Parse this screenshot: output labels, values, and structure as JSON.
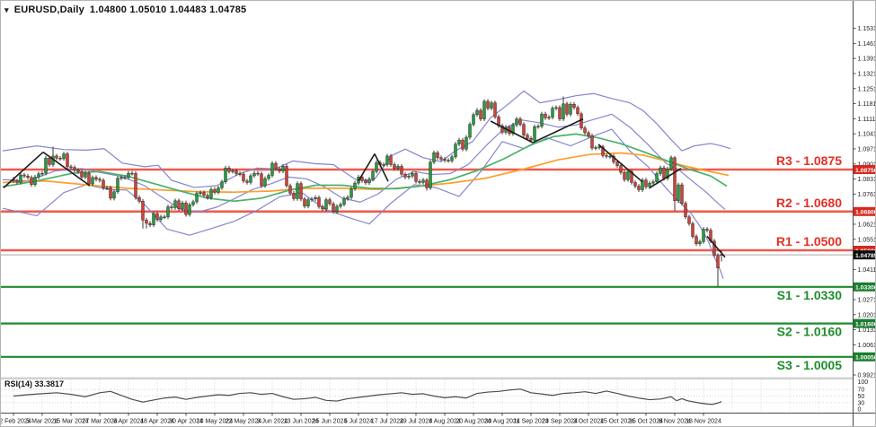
{
  "header": {
    "symbol_period": "EURUSD,Daily",
    "ohlc": "1.04800 1.05010 1.04483 1.04785"
  },
  "rsi": {
    "label": "RSI(14) 33.3817",
    "value": 33.3817,
    "scale_labels": [
      100,
      70,
      50,
      30,
      0
    ],
    "dotted_levels": [
      70,
      50,
      30
    ],
    "points": [
      [
        14,
        50
      ],
      [
        30,
        54
      ],
      [
        46,
        57
      ],
      [
        62,
        60
      ],
      [
        78,
        55
      ],
      [
        94,
        48
      ],
      [
        110,
        60
      ],
      [
        122,
        64
      ],
      [
        134,
        52
      ],
      [
        146,
        40
      ],
      [
        158,
        32
      ],
      [
        170,
        38
      ],
      [
        182,
        44
      ],
      [
        194,
        47
      ],
      [
        206,
        40
      ],
      [
        218,
        46
      ],
      [
        230,
        50
      ],
      [
        242,
        54
      ],
      [
        254,
        52
      ],
      [
        266,
        58
      ],
      [
        278,
        60
      ],
      [
        290,
        55
      ],
      [
        302,
        58
      ],
      [
        314,
        48
      ],
      [
        326,
        40
      ],
      [
        338,
        42
      ],
      [
        350,
        46
      ],
      [
        362,
        37
      ],
      [
        374,
        35
      ],
      [
        386,
        42
      ],
      [
        398,
        46
      ],
      [
        410,
        50
      ],
      [
        422,
        54
      ],
      [
        434,
        57
      ],
      [
        446,
        60
      ],
      [
        458,
        55
      ],
      [
        470,
        57
      ],
      [
        482,
        50
      ],
      [
        494,
        45
      ],
      [
        506,
        48
      ],
      [
        518,
        44
      ],
      [
        530,
        58
      ],
      [
        542,
        62
      ],
      [
        554,
        64
      ],
      [
        566,
        68
      ],
      [
        578,
        71
      ],
      [
        590,
        60
      ],
      [
        602,
        56
      ],
      [
        614,
        52
      ],
      [
        626,
        58
      ],
      [
        638,
        60
      ],
      [
        650,
        63
      ],
      [
        662,
        58
      ],
      [
        674,
        65
      ],
      [
        686,
        58
      ],
      [
        698,
        50
      ],
      [
        710,
        44
      ],
      [
        722,
        39
      ],
      [
        734,
        41
      ],
      [
        746,
        48
      ],
      [
        752,
        36
      ],
      [
        758,
        42
      ],
      [
        764,
        36
      ],
      [
        770,
        33
      ],
      [
        778,
        29
      ],
      [
        786,
        26
      ],
      [
        792,
        25
      ],
      [
        798,
        29
      ],
      [
        802,
        33.4
      ]
    ]
  },
  "chart_data": {
    "type": "candlestick",
    "symbol": "EURUSD",
    "timeframe": "Daily",
    "current_bar": {
      "open": 1.048,
      "high": 1.0501,
      "low": 1.04483,
      "close": 1.04785
    },
    "bid": {
      "price": 1.04785,
      "badge": "1.04785"
    },
    "levels": [
      {
        "name": "R3",
        "label": "R3 - 1.0875",
        "value": 1.0875,
        "badge": "1.08750",
        "type": "resistance"
      },
      {
        "name": "R2",
        "label": "R2 - 1.0680",
        "value": 1.068,
        "badge": "1.06800",
        "type": "resistance"
      },
      {
        "name": "R1",
        "label": "R1 - 1.0500",
        "value": 1.05,
        "badge": "1.05000",
        "type": "resistance"
      },
      {
        "name": "S1",
        "label": "S1 - 1.0330",
        "value": 1.033,
        "badge": "1.03300",
        "type": "support"
      },
      {
        "name": "S2",
        "label": "S2 - 1.0160",
        "value": 1.016,
        "badge": "1.01600",
        "type": "support"
      },
      {
        "name": "S3",
        "label": "S3 - 1.0005",
        "value": 1.0005,
        "badge": "1.00050",
        "type": "support"
      }
    ],
    "y_axis": {
      "ticks": [
        1.1531,
        1.1461,
        1.1391,
        1.1321,
        1.1251,
        1.1181,
        1.1111,
        1.1041,
        1.0971,
        1.0901,
        1.0831,
        1.0761,
        1.0621,
        1.0551,
        1.0411,
        1.0271,
        1.0201,
        1.0131,
        1.0061,
        0.9921
      ],
      "decimals": 5
    },
    "x_labels": [
      "22 Feb 2024",
      "5 Mar 2024",
      "15 Mar 2024",
      "27 Mar 2024",
      "8 Apr 2024",
      "18 Apr 2024",
      "30 Apr 2024",
      "10 May 2024",
      "22 May 2024",
      "3 Jun 2024",
      "13 Jun 2024",
      "25 Jun 2024",
      "5 Jul 2024",
      "17 Jul 2024",
      "29 Jul 2024",
      "8 Aug 2024",
      "20 Aug 2024",
      "30 Aug 2024",
      "11 Sep 2024",
      "23 Sep 2024",
      "3 Oct 2024",
      "15 Oct 2024",
      "25 Oct 2024",
      "6 Nov 2024",
      "18 Nov 2024"
    ],
    "open_first": 1.083,
    "closes": [
      1.0822,
      1.0815,
      1.085,
      1.0845,
      1.0838,
      1.0805,
      1.084,
      1.0855,
      1.0858,
      1.0928,
      1.0898,
      1.0938,
      1.0928,
      1.0925,
      1.0948,
      1.0888,
      1.0885,
      1.0872,
      1.0865,
      1.084,
      1.0858,
      1.0808,
      1.0838,
      1.083,
      1.0825,
      1.079,
      1.079,
      1.0742,
      1.0772,
      1.0835,
      1.0838,
      1.0838,
      1.0858,
      1.0857,
      1.0745,
      1.0728,
      1.064,
      1.0625,
      1.0618,
      1.067,
      1.0643,
      1.0655,
      1.0655,
      1.0702,
      1.0698,
      1.073,
      1.0693,
      1.072,
      1.0666,
      1.0712,
      1.0725,
      1.0764,
      1.0768,
      1.0755,
      1.0745,
      1.0783,
      1.077,
      1.079,
      1.0818,
      1.0882,
      1.0866,
      1.0869,
      1.0856,
      1.0854,
      1.0822,
      1.0815,
      1.0846,
      1.0858,
      1.0855,
      1.08,
      1.0833,
      1.0848,
      1.0904,
      1.0878,
      1.0868,
      1.089,
      1.08,
      1.0765,
      1.074,
      1.081,
      1.0738,
      1.0705,
      1.0735,
      1.0738,
      1.0745,
      1.0703,
      1.0692,
      1.0735,
      1.0716,
      1.068,
      1.0704,
      1.0713,
      1.074,
      1.0746,
      1.0786,
      1.0812,
      1.084,
      1.0824,
      1.0813,
      1.083,
      1.0866,
      1.0907,
      1.0897,
      1.0898,
      1.0938,
      1.0898,
      1.088,
      1.089,
      1.0853,
      1.084,
      1.0845,
      1.0857,
      1.082,
      1.0815,
      1.0826,
      1.079,
      1.091,
      1.0953,
      1.093,
      1.0923,
      1.0918,
      1.0916,
      1.0934,
      1.0993,
      1.1012,
      1.097,
      1.1025,
      1.1085,
      1.113,
      1.115,
      1.111,
      1.1192,
      1.116,
      1.1185,
      1.112,
      1.1078,
      1.1048,
      1.1072,
      1.1042,
      1.1082,
      1.111,
      1.1085,
      1.1035,
      1.102,
      1.1011,
      1.1074,
      1.1076,
      1.1133,
      1.1115,
      1.1118,
      1.116,
      1.1163,
      1.111,
      1.118,
      1.1132,
      1.1178,
      1.1163,
      1.1134,
      1.1068,
      1.1046,
      1.1032,
      1.0975,
      1.0977,
      1.098,
      1.094,
      1.0936,
      1.0937,
      1.091,
      1.0893,
      1.0862,
      1.0828,
      1.0866,
      1.0815,
      1.0798,
      1.0781,
      1.0826,
      1.0795,
      1.0812,
      1.0818,
      1.0856,
      1.0883,
      1.0834,
      1.0878,
      1.093,
      1.073,
      1.0804,
      1.0718,
      1.0655,
      1.0624,
      1.0564,
      1.053,
      1.054,
      1.0598,
      1.0593,
      1.0543,
      1.0476,
      1.0418,
      1.04785
    ],
    "wick_overrides": {
      "11": {
        "h": 1.0981
      },
      "36": {
        "l": 1.0601
      },
      "37": {
        "l": 1.0601
      },
      "115": {
        "l": 1.0777
      },
      "131": {
        "h": 1.1201
      },
      "153": {
        "h": 1.1214
      },
      "184": {
        "h": 1.0937,
        "l": 1.0683
      },
      "196": {
        "l": 1.0333
      },
      "197": {
        "o": 1.048,
        "h": 1.0501,
        "l": 1.0448,
        "c": 1.04785
      }
    },
    "bollinger": {
      "upper": [
        [
          2,
          1.0962
        ],
        [
          40,
          1.0985
        ],
        [
          70,
          1.0968
        ],
        [
          95,
          1.0965
        ],
        [
          115,
          1.0972
        ],
        [
          135,
          1.0905
        ],
        [
          160,
          1.0888
        ],
        [
          175,
          1.0895
        ],
        [
          190,
          1.0825
        ],
        [
          215,
          1.0792
        ],
        [
          240,
          1.08
        ],
        [
          265,
          1.0855
        ],
        [
          285,
          1.0882
        ],
        [
          305,
          1.0878
        ],
        [
          325,
          1.0915
        ],
        [
          350,
          1.0902
        ],
        [
          370,
          1.0898
        ],
        [
          395,
          1.0828
        ],
        [
          415,
          1.0825
        ],
        [
          435,
          1.094
        ],
        [
          450,
          1.097
        ],
        [
          470,
          1.093
        ],
        [
          490,
          1.0912
        ],
        [
          505,
          1.096
        ],
        [
          525,
          1.1005
        ],
        [
          545,
          1.1115
        ],
        [
          565,
          1.118
        ],
        [
          582,
          1.124
        ],
        [
          600,
          1.1185
        ],
        [
          620,
          1.12
        ],
        [
          640,
          1.1218
        ],
        [
          660,
          1.1228
        ],
        [
          680,
          1.1205
        ],
        [
          700,
          1.1185
        ],
        [
          715,
          1.1148
        ],
        [
          730,
          1.1088
        ],
        [
          745,
          1.1018
        ],
        [
          758,
          1.0962
        ],
        [
          772,
          1.0985
        ],
        [
          790,
          1.0996
        ],
        [
          802,
          1.0985
        ],
        [
          812,
          1.0972
        ]
      ],
      "middle": [
        [
          2,
          1.0828
        ],
        [
          30,
          1.0822
        ],
        [
          60,
          1.0868
        ],
        [
          90,
          1.088
        ],
        [
          110,
          1.0862
        ],
        [
          135,
          1.0842
        ],
        [
          160,
          1.08
        ],
        [
          180,
          1.0745
        ],
        [
          200,
          1.069
        ],
        [
          220,
          1.0678
        ],
        [
          240,
          1.07
        ],
        [
          260,
          1.074
        ],
        [
          280,
          1.0782
        ],
        [
          300,
          1.0808
        ],
        [
          320,
          1.084
        ],
        [
          340,
          1.0832
        ],
        [
          360,
          1.0795
        ],
        [
          380,
          1.0742
        ],
        [
          400,
          1.0724
        ],
        [
          420,
          1.0762
        ],
        [
          440,
          1.083
        ],
        [
          460,
          1.0866
        ],
        [
          480,
          1.0852
        ],
        [
          500,
          1.0856
        ],
        [
          520,
          1.0898
        ],
        [
          540,
          1.0986
        ],
        [
          560,
          1.1065
        ],
        [
          580,
          1.1105
        ],
        [
          600,
          1.1092
        ],
        [
          620,
          1.1072
        ],
        [
          640,
          1.1082
        ],
        [
          660,
          1.1108
        ],
        [
          680,
          1.1132
        ],
        [
          700,
          1.1072
        ],
        [
          720,
          1.0992
        ],
        [
          740,
          1.0905
        ],
        [
          755,
          1.0872
        ],
        [
          770,
          1.082
        ],
        [
          785,
          1.077
        ],
        [
          795,
          1.073
        ],
        [
          806,
          1.069
        ]
      ],
      "lower": [
        [
          2,
          1.0695
        ],
        [
          40,
          1.066
        ],
        [
          70,
          1.0768
        ],
        [
          95,
          1.0805
        ],
        [
          120,
          1.0782
        ],
        [
          140,
          1.078
        ],
        [
          160,
          1.0712
        ],
        [
          185,
          1.0598
        ],
        [
          210,
          1.057
        ],
        [
          235,
          1.0602
        ],
        [
          260,
          1.0635
        ],
        [
          285,
          1.0685
        ],
        [
          310,
          1.0748
        ],
        [
          335,
          1.0768
        ],
        [
          360,
          1.0692
        ],
        [
          385,
          1.0655
        ],
        [
          410,
          1.0622
        ],
        [
          435,
          1.0722
        ],
        [
          460,
          1.0805
        ],
        [
          485,
          1.079
        ],
        [
          510,
          1.075
        ],
        [
          535,
          1.087
        ],
        [
          558,
          1.1005
        ],
        [
          582,
          1.0972
        ],
        [
          608,
          1.1022
        ],
        [
          634,
          1.0985
        ],
        [
          658,
          1.1028
        ],
        [
          680,
          1.1062
        ],
        [
          700,
          1.0962
        ],
        [
          720,
          1.089
        ],
        [
          740,
          1.079
        ],
        [
          755,
          1.0725
        ],
        [
          768,
          1.0672
        ],
        [
          778,
          1.0612
        ],
        [
          787,
          1.0545
        ],
        [
          794,
          1.047
        ],
        [
          800,
          1.0415
        ],
        [
          804,
          1.0368
        ]
      ]
    },
    "ma_slow_orange": [
      [
        2,
        1.0815
      ],
      [
        50,
        1.0822
      ],
      [
        100,
        1.0802
      ],
      [
        140,
        1.0788
      ],
      [
        180,
        1.078
      ],
      [
        220,
        1.0772
      ],
      [
        260,
        1.077
      ],
      [
        300,
        1.0775
      ],
      [
        340,
        1.0788
      ],
      [
        380,
        1.0788
      ],
      [
        420,
        1.0782
      ],
      [
        460,
        1.0795
      ],
      [
        500,
        1.0812
      ],
      [
        540,
        1.0835
      ],
      [
        580,
        1.0875
      ],
      [
        620,
        1.092
      ],
      [
        655,
        1.0945
      ],
      [
        690,
        1.0952
      ],
      [
        715,
        1.0942
      ],
      [
        740,
        1.0915
      ],
      [
        765,
        1.0888
      ],
      [
        790,
        1.0865
      ],
      [
        810,
        1.0848
      ]
    ],
    "ma_fast_green": [
      [
        2,
        1.0795
      ],
      [
        40,
        1.0822
      ],
      [
        80,
        1.0858
      ],
      [
        110,
        1.0866
      ],
      [
        140,
        1.0845
      ],
      [
        170,
        1.081
      ],
      [
        200,
        1.0775
      ],
      [
        230,
        1.0742
      ],
      [
        260,
        1.0728
      ],
      [
        290,
        1.0742
      ],
      [
        320,
        1.0778
      ],
      [
        350,
        1.0802
      ],
      [
        380,
        1.0802
      ],
      [
        410,
        1.0788
      ],
      [
        440,
        1.0786
      ],
      [
        470,
        1.08
      ],
      [
        500,
        1.0828
      ],
      [
        530,
        1.087
      ],
      [
        560,
        1.0925
      ],
      [
        590,
        1.099
      ],
      [
        615,
        1.1028
      ],
      [
        640,
        1.104
      ],
      [
        665,
        1.1022
      ],
      [
        690,
        1.0995
      ],
      [
        715,
        1.0958
      ],
      [
        740,
        1.0918
      ],
      [
        765,
        1.0878
      ],
      [
        790,
        1.0845
      ],
      [
        808,
        1.0798
      ]
    ],
    "trendlines": [
      [
        3,
        1.079,
        47,
        1.0956
      ],
      [
        47,
        1.0956,
        99,
        1.08
      ],
      [
        398,
        1.0822,
        416,
        1.0948
      ],
      [
        416,
        1.0948,
        431,
        1.082
      ],
      [
        545,
        1.11,
        592,
        1.1
      ],
      [
        592,
        1.1,
        648,
        1.111
      ],
      [
        665,
        1.0992,
        714,
        1.0818
      ],
      [
        722,
        1.079,
        757,
        1.088
      ],
      [
        786,
        1.0565,
        806,
        1.0468
      ]
    ]
  },
  "colors": {
    "resistance_line": "#ee5a4e",
    "resistance_label": "#e42f24",
    "support_line": "#1e8a2e",
    "support_label": "#1e8e2e",
    "badge_red": "#d7281e",
    "badge_green": "#1b7e2f",
    "badge_black": "#0d0d0d",
    "bull": "#2a9a40",
    "bear": "#cd4337",
    "wick": "#3a3a3a",
    "candle_border": "#1d1d1d",
    "bollinger": "#8585cc",
    "ma_fast": "#49b26b",
    "ma_slow": "#ff9d2e",
    "bid_line": "#b9b9b9",
    "trendline": "#1c1c1c",
    "rsi_line": "#4d4d4d",
    "axis_text": "#1c1c1c",
    "grid_dotted": "#c6c6c6",
    "axis_line": "#4a4a4a",
    "divider": "#d0d0d0"
  }
}
